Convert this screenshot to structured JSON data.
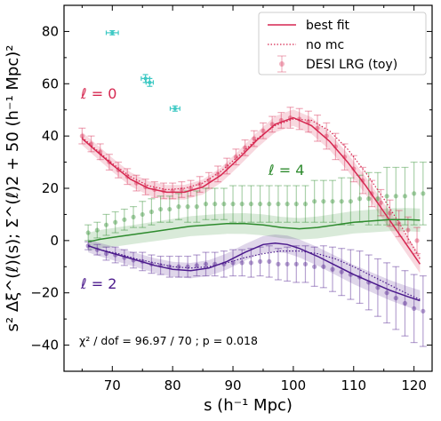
{
  "chart_data": {
    "type": "line",
    "xlabel": "s (h⁻¹ Mpc)",
    "ylabel": "s² Δξ^(ℓ)(s);  Σ^(ℓ)2 + 50 (h⁻¹ Mpc)²",
    "xlim": [
      62,
      123
    ],
    "ylim": [
      -50,
      90
    ],
    "xticks": [
      70,
      80,
      90,
      100,
      110,
      120
    ],
    "yticks": [
      -40,
      -20,
      0,
      20,
      40,
      60,
      80
    ],
    "grid": false,
    "legend": {
      "placement": "top-right",
      "entries": [
        "best fit",
        "no mc",
        "DESI LRG (toy)"
      ]
    },
    "annotations": {
      "l0": "ℓ = 0",
      "l4": "ℓ = 4",
      "l2": "ℓ = 2",
      "chi2": "χ² / dof = 96.97 / 70 ; p = 0.018"
    },
    "colors": {
      "l0": "#d62750",
      "l2": "#4b1a8c",
      "l4": "#2e8b2e",
      "cyan": "#3ec9c4"
    },
    "cyan_points": {
      "x": [
        70,
        75.5,
        76.2,
        80.4
      ],
      "y": [
        79.5,
        62,
        60.5,
        50.5
      ],
      "xerr": [
        1.0,
        0.7,
        0.6,
        0.8
      ],
      "yerr": [
        0.8,
        1.5,
        1.5,
        1.0
      ]
    },
    "series": [
      {
        "name": "DESI LRG (toy)",
        "multipole": "l0",
        "x": [
          65,
          66.5,
          68,
          69.5,
          71,
          72.5,
          74,
          75.5,
          77,
          78.5,
          80,
          81.5,
          83,
          84.5,
          86,
          87.5,
          89,
          90.5,
          92,
          93.5,
          95,
          96.5,
          98,
          99.5,
          101,
          102.5,
          104,
          105.5,
          107,
          108.5,
          110,
          111.5,
          113,
          114.5,
          116,
          117.5,
          119,
          120.5
        ],
        "y": [
          40,
          37,
          34,
          30,
          27,
          24.5,
          22,
          20.5,
          19.5,
          19,
          19,
          19.5,
          20,
          21.5,
          23,
          25.5,
          28.5,
          32,
          35.5,
          39,
          42,
          44.5,
          46,
          47,
          46.5,
          45.5,
          43,
          40,
          36,
          32,
          27.5,
          23,
          18,
          14.5,
          10.5,
          6.5,
          4,
          0
        ],
        "yerr": [
          3,
          3,
          3,
          3,
          3,
          3,
          3,
          3,
          3,
          3,
          3,
          3,
          3,
          3,
          3,
          3,
          3,
          3,
          3,
          3,
          3,
          3,
          3,
          4,
          4,
          4,
          5,
          5,
          5,
          5,
          5,
          5,
          5,
          5,
          5,
          5,
          5,
          5
        ]
      },
      {
        "name": "best fit",
        "multipole": "l0",
        "x": [
          65,
          67,
          70,
          73,
          76,
          79,
          82,
          85,
          88,
          91,
          94,
          97,
          100,
          103,
          106,
          109,
          112,
          115,
          118,
          121
        ],
        "y": [
          39,
          35,
          29,
          23.5,
          20,
          18.5,
          18.5,
          20.5,
          25,
          31.5,
          38.5,
          44.5,
          47,
          44,
          38,
          30,
          21,
          11,
          1,
          -9
        ]
      },
      {
        "name": "no mc",
        "multipole": "l0",
        "x": [
          65,
          67,
          70,
          73,
          76,
          79,
          82,
          85,
          88,
          91,
          94,
          97,
          100,
          103,
          106,
          109,
          112,
          115,
          118,
          121
        ],
        "y": [
          39.5,
          35.5,
          29.5,
          24.5,
          21,
          19.5,
          20,
          22,
          26.5,
          32.5,
          39,
          44,
          46.5,
          46,
          42,
          35,
          26,
          16,
          5,
          -7
        ]
      },
      {
        "name": "DESI LRG (toy)",
        "multipole": "l4",
        "x": [
          66,
          67.5,
          69,
          70.5,
          72,
          73.5,
          75,
          76.5,
          78,
          79.5,
          81,
          82.5,
          84,
          85.5,
          87,
          88.5,
          90,
          91.5,
          93,
          94.5,
          96,
          97.5,
          99,
          100.5,
          102,
          103.5,
          105,
          106.5,
          108,
          109.5,
          111,
          112.5,
          114,
          115.5,
          117,
          118.5,
          120,
          121.5
        ],
        "y": [
          3,
          4,
          6,
          7,
          8,
          9,
          10,
          11,
          12,
          12,
          13,
          13,
          13,
          14,
          14,
          14,
          14,
          14,
          14,
          14,
          14,
          14,
          14,
          14,
          14,
          15,
          15,
          15,
          15,
          15,
          16,
          16,
          16,
          17,
          17,
          17,
          18,
          18
        ],
        "yerr": [
          3,
          3,
          4,
          4,
          4,
          4,
          5,
          5,
          5,
          5,
          5,
          6,
          6,
          6,
          6,
          6,
          7,
          7,
          7,
          7,
          7,
          7,
          7,
          7,
          7,
          8,
          8,
          8,
          9,
          9,
          9,
          10,
          10,
          11,
          11,
          11,
          12,
          12
        ]
      },
      {
        "name": "best fit",
        "multipole": "l4",
        "x": [
          66,
          68,
          71,
          74,
          77,
          80,
          83,
          86,
          89,
          92,
          95,
          98,
          101,
          104,
          107,
          110,
          113,
          116,
          119,
          121
        ],
        "y": [
          -0.5,
          0.5,
          1.5,
          2.5,
          3.5,
          4.5,
          5.5,
          6,
          6.5,
          6.5,
          6,
          5,
          4.5,
          5,
          6,
          7,
          7.5,
          8,
          8,
          7.8
        ]
      },
      {
        "name": "DESI LRG (toy)",
        "multipole": "l2",
        "x": [
          66,
          67.5,
          69,
          70.5,
          72,
          73.5,
          75,
          76.5,
          78,
          79.5,
          81,
          82.5,
          84,
          85.5,
          87,
          88.5,
          90,
          91.5,
          93,
          94.5,
          96,
          97.5,
          99,
          100.5,
          102,
          103.5,
          105,
          106.5,
          108,
          109.5,
          111,
          112.5,
          114,
          115.5,
          117,
          118.5,
          120,
          121.5
        ],
        "y": [
          -2,
          -3.5,
          -5,
          -5.5,
          -6.5,
          -7.5,
          -8,
          -9,
          -9.5,
          -10,
          -10,
          -10,
          -9.5,
          -9,
          -9,
          -9,
          -8.5,
          -8.5,
          -8.5,
          -8,
          -8,
          -9,
          -9,
          -9,
          -9,
          -10,
          -10,
          -11,
          -12,
          -13,
          -14,
          -16,
          -18,
          -20,
          -22,
          -24,
          -26,
          -27
        ],
        "yerr": [
          1.5,
          2,
          2.5,
          3,
          3,
          3,
          3.5,
          3.5,
          3.5,
          4,
          4,
          4,
          4,
          4.5,
          4.5,
          5,
          5,
          5,
          5.5,
          5.5,
          6,
          6,
          6.5,
          7,
          7,
          7.5,
          8,
          8.5,
          9,
          9.5,
          10,
          10.5,
          11,
          11.5,
          12,
          12.5,
          13,
          13.5
        ]
      },
      {
        "name": "best fit",
        "multipole": "l2",
        "x": [
          66,
          68,
          71,
          74,
          77,
          80,
          83,
          86,
          89,
          92,
          95,
          97,
          99,
          101,
          104,
          107,
          110,
          113,
          116,
          119,
          121
        ],
        "y": [
          -2,
          -3.5,
          -5.5,
          -7.5,
          -9.5,
          -11,
          -11.5,
          -10.5,
          -8,
          -4.5,
          -1.5,
          -1,
          -1.5,
          -3,
          -6,
          -9.5,
          -13,
          -16,
          -19,
          -21.5,
          -23
        ]
      },
      {
        "name": "no mc",
        "multipole": "l2",
        "x": [
          66,
          68,
          71,
          74,
          77,
          80,
          83,
          86,
          89,
          92,
          95,
          98,
          101,
          104,
          107,
          110,
          113,
          116,
          119,
          121
        ],
        "y": [
          -2,
          -3.5,
          -5,
          -7,
          -8.5,
          -10,
          -10.5,
          -10,
          -8.5,
          -6.5,
          -5,
          -4,
          -4,
          -5,
          -7,
          -10,
          -13.5,
          -17,
          -20.5,
          -22.5
        ]
      }
    ]
  }
}
